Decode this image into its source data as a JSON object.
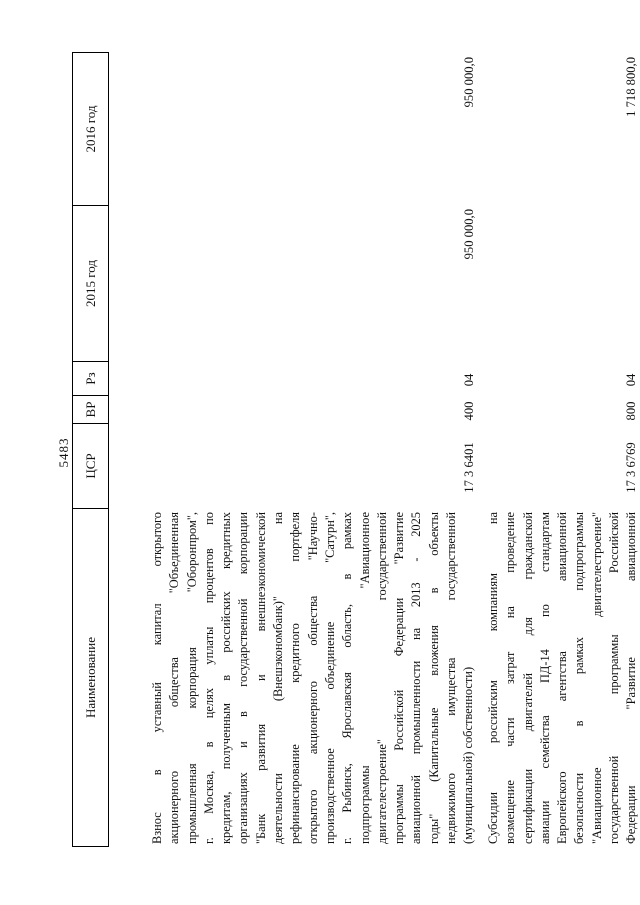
{
  "colors": {
    "ink": "#111111",
    "border": "#000000",
    "background": "#ffffff"
  },
  "page": {
    "number": "5483"
  },
  "table": {
    "headers": {
      "name": "Наименование",
      "csr": "ЦСР",
      "vr": "ВР",
      "rz": "Рз",
      "y2015": "2015 год",
      "y2016": "2016 год"
    },
    "rows": [
      {
        "name_lines": [
          "Взнос в уставный капитал открытого",
          "акционерного общества \"Объединенная",
          "промышленная корпорация \"Оборонпром\",",
          "г. Москва, в целях уплаты процентов по",
          "кредитам, полученным в российских кредитных",
          "организациях и в государственной корпорации",
          "\"Банк развития и внешнеэкономической",
          "деятельности (Внешэкономбанк)\" на",
          "рефинансирование кредитного портфеля",
          "открытого акционерного общества \"Научно-",
          "производственное объединение \"Сатурн\",",
          "г. Рыбинск, Ярославская область, в рамках",
          "подпрограммы \"Авиационное",
          "двигателестроение\" государственной",
          "программы Российской Федерации \"Развитие",
          "авиационной промышленности на 2013 - 2025",
          "годы\" (Капитальные вложения в объекты",
          "недвижимого имущества государственной",
          "(муниципальной) собственности)"
        ],
        "csr": "17 3 6401",
        "vr": "400",
        "rz": "04",
        "y2015": "950 000,0",
        "y2016": "950 000,0"
      },
      {
        "name_lines": [
          "Субсидии российским компаниям на",
          "возмещение части затрат на проведение",
          "сертификации двигателей для гражданской",
          "авиации семейства ПД-14 по стандартам",
          "Европейского агентства авиационной",
          "безопасности в рамках подпрограммы",
          "\"Авиационное двигателестроение\"",
          "государственной программы Российской",
          "Федерации \"Развитие авиационной"
        ],
        "csr": "17 3 6769",
        "vr": "800",
        "rz": "04",
        "y2015": "",
        "y2016": "1 718 800,0"
      }
    ]
  }
}
